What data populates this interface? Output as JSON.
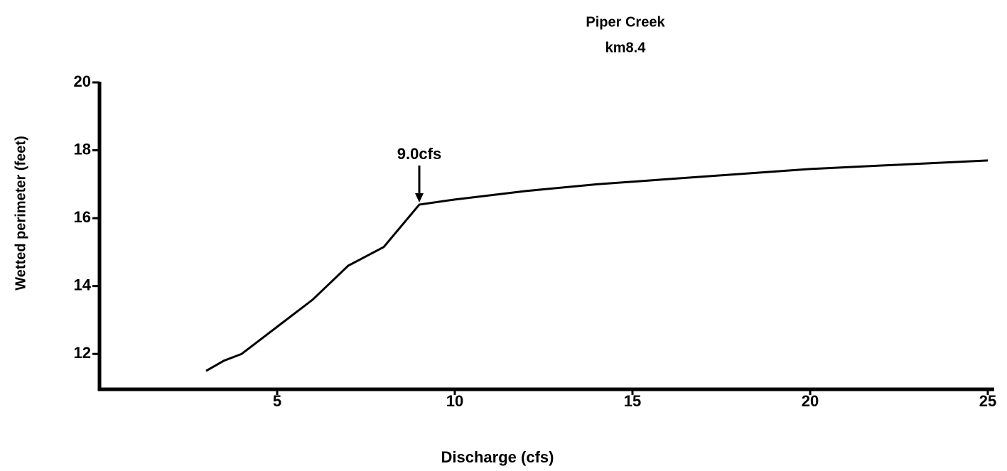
{
  "chart_data": {
    "type": "line",
    "title": "Piper Creek",
    "subtitle": "km8.4",
    "x_label": "Discharge (cfs)",
    "y_label": "Wetted perimeter (feet)",
    "annotation": {
      "text": "9.0cfs",
      "x": 9,
      "y": 16.4
    },
    "x": [
      3,
      3.5,
      4,
      5,
      6,
      7,
      8,
      9,
      10,
      12,
      14,
      16,
      18,
      20,
      22,
      25
    ],
    "series": [
      {
        "name": "Wetted perimeter",
        "color": "#000000",
        "values": [
          11.5,
          11.8,
          12.0,
          12.8,
          13.6,
          14.6,
          15.15,
          16.4,
          16.55,
          16.8,
          17.0,
          17.15,
          17.3,
          17.45,
          17.55,
          17.7
        ]
      }
    ],
    "xlim": [
      0,
      25
    ],
    "xticks": [
      5,
      10,
      15,
      20,
      25
    ],
    "ylim": [
      11,
      20
    ],
    "yticks": [
      12,
      14,
      16,
      18,
      20
    ],
    "grid": false
  }
}
